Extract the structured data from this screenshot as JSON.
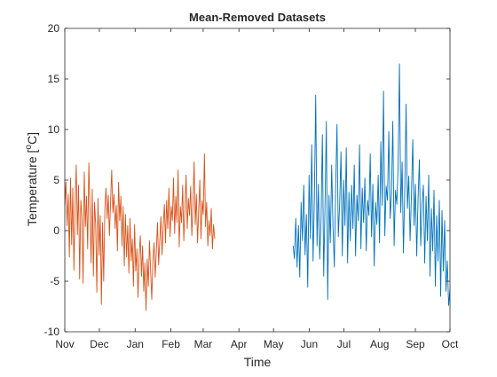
{
  "chart_data": {
    "type": "line",
    "title": "Mean-Removed Datasets",
    "xlabel": "Time",
    "ylabel_main": "Temperature [",
    "ylabel_sup": "o",
    "ylabel_tail": "C]",
    "ylim": [
      -10,
      20
    ],
    "yticks": [
      -10,
      -5,
      0,
      5,
      10,
      15,
      20
    ],
    "xlim": [
      "Nov",
      "Oct"
    ],
    "xticks": [
      "Nov",
      "Dec",
      "Jan",
      "Feb",
      "Mar",
      "Apr",
      "May",
      "Jun",
      "Jul",
      "Aug",
      "Sep",
      "Oct"
    ],
    "grid": false,
    "legend": "none",
    "series": [
      {
        "color": "#D95319",
        "x_start": "Nov",
        "x_end": "Mar",
        "values": [
          2.5,
          4.8,
          0.5,
          3.6,
          -2.6,
          5.2,
          -1.4,
          4.2,
          -3.9,
          2.6,
          6.5,
          -0.4,
          4.5,
          -4.8,
          3.0,
          1.4,
          -5.2,
          5.8,
          0.4,
          3.4,
          -1.8,
          6.7,
          2.2,
          -3.2,
          4.1,
          -4.5,
          2.8,
          0.6,
          -6.1,
          3.2,
          -2.4,
          1.5,
          -7.3,
          0.8,
          -5.0,
          2.0,
          4.2,
          1.2,
          3.5,
          -0.5,
          2.8,
          6.0,
          1.8,
          3.6,
          0.2,
          2.5,
          -2.0,
          4.8,
          1.0,
          3.4,
          -1.5,
          2.4,
          -3.5,
          1.6,
          -2.6,
          0.5,
          -4.2,
          1.2,
          -3.0,
          -0.8,
          -5.5,
          0.6,
          -4.0,
          -1.8,
          -6.6,
          -2.4,
          -0.5,
          -4.5,
          -1.5,
          -6.0,
          -3.2,
          -7.9,
          -2.8,
          -5.5,
          -1.0,
          -4.0,
          -6.8,
          -3.0,
          -1.2,
          -4.6,
          -2.0,
          0.8,
          -3.4,
          -1.0,
          1.4,
          -2.4,
          0.5,
          2.6,
          -1.2,
          3.0,
          0.2,
          4.2,
          -0.6,
          2.4,
          1.0,
          5.2,
          -0.3,
          3.4,
          0.8,
          6.0,
          -1.6,
          2.4,
          0.8,
          4.5,
          -1.0,
          2.2,
          5.5,
          0.2,
          3.2,
          1.5,
          4.4,
          -0.5,
          2.6,
          6.8,
          0.6,
          3.6,
          -1.2,
          2.0,
          5.0,
          -0.8,
          3.0,
          1.6,
          7.6,
          0.4,
          2.8,
          -1.5,
          1.0,
          -0.5,
          2.2,
          -1.8,
          0.6,
          -0.8
        ]
      },
      {
        "color": "#0072BD",
        "x_start": "2023-05-18",
        "x_end": "Oct",
        "values": [
          -1.5,
          -2.8,
          1.2,
          -3.6,
          0.5,
          -4.6,
          2.8,
          -1.0,
          4.5,
          -2.4,
          1.6,
          -5.6,
          5.5,
          -0.8,
          8.5,
          -3.0,
          3.2,
          13.4,
          -1.5,
          4.6,
          -2.8,
          1.0,
          9.5,
          -4.5,
          2.4,
          10.8,
          -6.8,
          3.5,
          -1.2,
          6.5,
          0.4,
          -3.6,
          4.2,
          10.5,
          -0.6,
          2.6,
          7.8,
          -2.5,
          5.0,
          0.5,
          8.2,
          -3.2,
          3.8,
          -1.0,
          4.5,
          0.2,
          6.5,
          -2.5,
          3.5,
          1.0,
          8.5,
          -1.8,
          4.2,
          0.8,
          5.2,
          -2.0,
          3.0,
          1.5,
          7.6,
          -0.6,
          4.6,
          -3.5,
          2.8,
          0.6,
          5.5,
          -1.2,
          8.8,
          2.5,
          13.8,
          -0.5,
          4.4,
          3.0,
          9.8,
          1.2,
          3.6,
          10.8,
          -1.5,
          4.0,
          2.6,
          6.4,
          16.5,
          1.8,
          6.8,
          -2.2,
          4.0,
          12.5,
          2.2,
          5.4,
          -1.0,
          3.5,
          9.0,
          0.5,
          4.6,
          -2.5,
          3.2,
          7.0,
          -1.5,
          2.6,
          4.5,
          -3.2,
          3.4,
          -1.0,
          5.5,
          -4.5,
          2.2,
          -2.0,
          4.0,
          -5.5,
          1.5,
          -3.0,
          3.0,
          -6.5,
          2.0,
          -4.0,
          1.0,
          -6.0,
          -3.0,
          -7.4,
          -5.8
        ]
      }
    ]
  }
}
